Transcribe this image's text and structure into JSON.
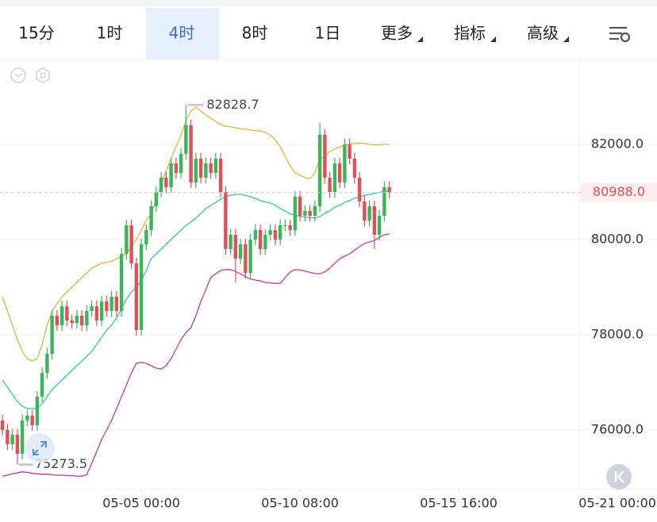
{
  "toolbar": {
    "tabs": [
      "15分",
      "1时",
      "4时",
      "8时",
      "1日",
      "更多",
      "指标",
      "高级"
    ],
    "selected": 2
  },
  "chart_data": {
    "type": "candlestick",
    "xlim": [
      -0.5,
      116.3
    ],
    "xticks": [
      {
        "value": 28,
        "label": "05-05 00:00"
      },
      {
        "value": 60,
        "label": "05-10 08:00"
      },
      {
        "value": 92,
        "label": "05-15 16:00"
      },
      {
        "value": 124,
        "label": "05-21 00:00"
      }
    ],
    "ylim": [
      74750,
      83783
    ],
    "yticks": [
      {
        "value": 76000,
        "label": "76000.0"
      },
      {
        "value": 78000,
        "label": "78000.0"
      },
      {
        "value": 80000,
        "label": "80000.0"
      },
      {
        "value": 82000,
        "label": "82000.0"
      }
    ],
    "grid": true,
    "up_color": "#3bb55a",
    "down_color": "#e0505a",
    "open": [
      76200,
      76000,
      75700,
      75900,
      75500,
      76200,
      76300,
      76100,
      76700,
      77200,
      77600,
      78400,
      78200,
      78600,
      78300,
      78250,
      78400,
      78200,
      78500,
      78600,
      78300,
      78700,
      78500,
      78800,
      78500,
      79700,
      80300,
      79500,
      78100,
      79900,
      80200,
      80700,
      81000,
      81300,
      81100,
      81600,
      81400,
      81800,
      82400,
      81200,
      81700,
      81300,
      81600,
      81400,
      81700,
      81000,
      79800,
      80100,
      79600,
      79900,
      79300,
      80000,
      80200,
      79800,
      80100,
      80200,
      80000,
      80300,
      80300,
      80200,
      80900,
      80500,
      80600,
      80500,
      80700,
      82200,
      81300,
      81000,
      81600,
      81200,
      82000,
      81700,
      81300,
      80800,
      80400,
      80700,
      80100,
      80500,
      81100
    ],
    "high": [
      76320,
      76120,
      76020,
      76020,
      76320,
      76420,
      76420,
      76820,
      77320,
      77720,
      78520,
      78520,
      78720,
      78720,
      78420,
      78520,
      78520,
      78620,
      78720,
      78720,
      78820,
      78820,
      78920,
      78920,
      79820,
      80420,
      80420,
      79620,
      80020,
      80320,
      80820,
      81120,
      81420,
      81420,
      81720,
      81720,
      81920,
      82828.7,
      82520,
      81820,
      81820,
      81720,
      81720,
      81820,
      81820,
      81120,
      80220,
      80220,
      80020,
      80020,
      80120,
      80320,
      80320,
      80220,
      80320,
      80320,
      80420,
      80420,
      80420,
      81020,
      81020,
      80720,
      80720,
      80820,
      82450,
      82320,
      81420,
      81720,
      81720,
      82120,
      82120,
      81820,
      81420,
      80920,
      80820,
      80820,
      80620,
      81220,
      81220
    ],
    "low": [
      75880,
      75580,
      75580,
      75273.5,
      75380,
      76080,
      75980,
      75980,
      76580,
      77080,
      77480,
      78080,
      78080,
      78180,
      78130,
      78130,
      78080,
      78080,
      78380,
      78180,
      78180,
      78380,
      78380,
      78380,
      78380,
      79580,
      79380,
      77980,
      77980,
      79780,
      80080,
      80580,
      80880,
      80980,
      80980,
      81280,
      81280,
      81680,
      81080,
      81080,
      81180,
      81180,
      81280,
      81280,
      80880,
      79680,
      79680,
      79100,
      79480,
      79180,
      79180,
      79880,
      79680,
      79680,
      79980,
      79880,
      79880,
      80180,
      80080,
      80080,
      80380,
      80380,
      80380,
      80380,
      80580,
      81180,
      80880,
      80880,
      81080,
      81080,
      81580,
      81180,
      80680,
      80280,
      80280,
      79800,
      79980,
      80380,
      80868
    ],
    "close": [
      76000,
      75700,
      75900,
      75500,
      76200,
      76300,
      76100,
      76700,
      77200,
      77600,
      78400,
      78200,
      78600,
      78300,
      78250,
      78400,
      78200,
      78500,
      78600,
      78300,
      78700,
      78500,
      78800,
      78500,
      79700,
      80300,
      79500,
      78100,
      79900,
      80200,
      80700,
      81000,
      81300,
      81100,
      81600,
      81400,
      81800,
      82400,
      81200,
      81700,
      81300,
      81600,
      81400,
      81700,
      81000,
      79800,
      80100,
      79600,
      79900,
      79300,
      80000,
      80200,
      79800,
      80100,
      80200,
      80000,
      80300,
      80300,
      80200,
      80900,
      80500,
      80600,
      80500,
      80700,
      82200,
      81300,
      81000,
      81600,
      81200,
      82000,
      81700,
      81300,
      80800,
      80400,
      80700,
      80100,
      80500,
      81100,
      80988
    ],
    "last_price_label": "80988.0",
    "bands": [
      {
        "color": "#e6b43c",
        "values": [
          78800,
          78500,
          78200,
          77900,
          77650,
          77500,
          77450,
          77500,
          77800,
          78200,
          78500,
          78650,
          78800,
          78900,
          79000,
          79100,
          79200,
          79300,
          79400,
          79450,
          79500,
          79520,
          79540,
          79600,
          79650,
          79700,
          79850,
          80000,
          80200,
          80400,
          80550,
          80850,
          81150,
          81450,
          81700,
          81950,
          82200,
          82500,
          82700,
          82780,
          82700,
          82620,
          82550,
          82480,
          82420,
          82380,
          82370,
          82350,
          82330,
          82320,
          82300,
          82290,
          82280,
          82250,
          82200,
          82100,
          81950,
          81750,
          81550,
          81400,
          81350,
          81300,
          81280,
          81400,
          81700,
          81750,
          81850,
          81900,
          81950,
          81980,
          82000,
          82020,
          82030,
          82020,
          82000,
          81990,
          81990,
          82000,
          82000
        ]
      },
      {
        "color": "#3cc4a0",
        "values": [
          77050,
          76900,
          76750,
          76600,
          76500,
          76450,
          76450,
          76450,
          76550,
          76700,
          76850,
          76950,
          77050,
          77150,
          77250,
          77350,
          77450,
          77550,
          77650,
          77800,
          77950,
          78100,
          78200,
          78350,
          78550,
          78750,
          78900,
          79000,
          79150,
          79350,
          79600,
          79700,
          79800,
          79900,
          80000,
          80100,
          80200,
          80300,
          80370,
          80450,
          80550,
          80650,
          80720,
          80780,
          80850,
          80900,
          80930,
          80950,
          80950,
          80930,
          80900,
          80860,
          80820,
          80790,
          80770,
          80720,
          80650,
          80600,
          80540,
          80510,
          80490,
          80470,
          80460,
          80450,
          80480,
          80550,
          80600,
          80680,
          80720,
          80780,
          80820,
          80870,
          80900,
          80930,
          80950,
          80970,
          80990,
          81010,
          81030
        ]
      },
      {
        "color": "#c23a9c",
        "values": [
          75030,
          75050,
          75080,
          75100,
          75120,
          75110,
          75090,
          75080,
          75070,
          75070,
          75060,
          75050,
          75050,
          75040,
          75040,
          75030,
          75030,
          75060,
          75300,
          75550,
          75800,
          76000,
          76200,
          76450,
          76700,
          76950,
          77200,
          77400,
          77420,
          77400,
          77350,
          77300,
          77280,
          77350,
          77500,
          77700,
          77900,
          78050,
          78150,
          78400,
          78700,
          78950,
          79200,
          79280,
          79350,
          79370,
          79370,
          79330,
          79280,
          79220,
          79170,
          79150,
          79130,
          79100,
          79090,
          79080,
          79080,
          79200,
          79320,
          79370,
          79360,
          79340,
          79310,
          79290,
          79280,
          79320,
          79400,
          79500,
          79600,
          79650,
          79700,
          79780,
          79850,
          79920,
          79950,
          79980,
          80050,
          80100,
          80120
        ]
      }
    ]
  }
}
